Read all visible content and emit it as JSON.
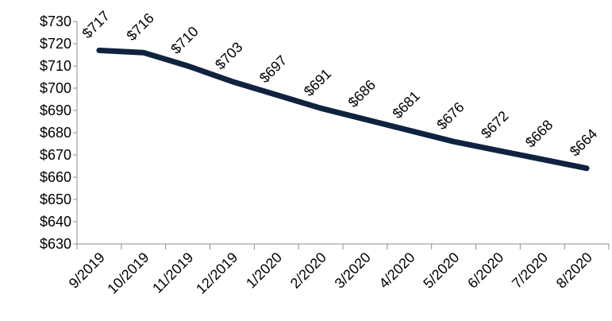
{
  "chart_data": {
    "type": "line",
    "title": "",
    "xlabel": "",
    "ylabel": "",
    "categories": [
      "9/2019",
      "10/2019",
      "11/2019",
      "12/2019",
      "1/2020",
      "2/2020",
      "3/2020",
      "4/2020",
      "5/2020",
      "6/2020",
      "7/2020",
      "8/2020"
    ],
    "series": [
      {
        "values": [
          717,
          716,
          710,
          703,
          697,
          691,
          686,
          681,
          676,
          672,
          668,
          664
        ],
        "labels": [
          "$717",
          "$716",
          "$710",
          "$703",
          "$697",
          "$691",
          "$686",
          "$681",
          "$676",
          "$672",
          "$668",
          "$664"
        ],
        "color": "#0f2240"
      }
    ],
    "ylim": [
      630,
      730
    ],
    "yticks": [
      630,
      640,
      650,
      660,
      670,
      680,
      690,
      700,
      710,
      720,
      730
    ],
    "ytick_labels": [
      "$630",
      "$640",
      "$650",
      "$660",
      "$670",
      "$680",
      "$690",
      "$700",
      "$710",
      "$720",
      "$730"
    ],
    "grid": false,
    "legend": "none"
  }
}
